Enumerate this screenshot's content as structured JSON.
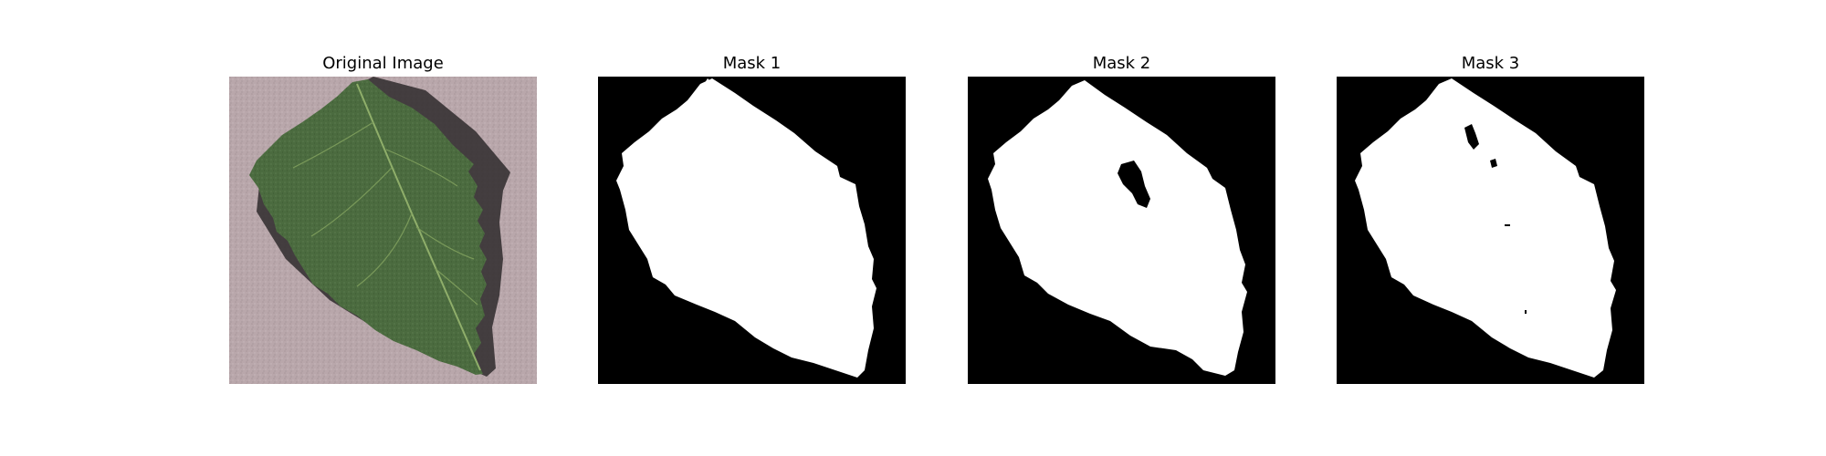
{
  "panels": [
    {
      "title": "Original Image"
    },
    {
      "title": "Mask 1"
    },
    {
      "title": "Mask 2"
    },
    {
      "title": "Mask 3"
    }
  ],
  "colors": {
    "background": "#ffffff",
    "mask_background": "#000000",
    "mask_foreground": "#ffffff",
    "leaf_green": "#4a6a3e",
    "surface_pink": "#b8a6aa"
  }
}
